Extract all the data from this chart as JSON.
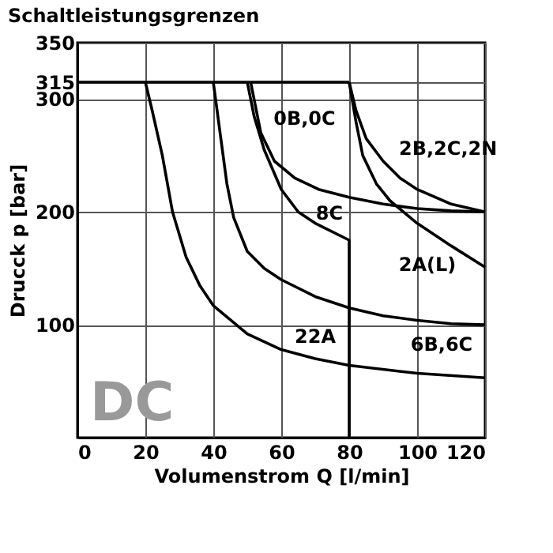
{
  "chart_data": {
    "type": "line",
    "title": "Schaltleistungsgrenzen",
    "xlabel": "Volumenstrom Q [l/min]",
    "ylabel": "Drucck  p [bar]",
    "xlim": [
      0,
      120
    ],
    "xticks": [
      0,
      20,
      40,
      60,
      80,
      100,
      120
    ],
    "ylim": [
      0,
      350
    ],
    "yticks": [
      100,
      200,
      300,
      315,
      350
    ],
    "grid": true,
    "marker": "none",
    "line_style": "solid",
    "series": [
      {
        "color": "#000000",
        "x": [
          0,
          80
        ],
        "values": [
          315,
          315
        ]
      },
      {
        "name": "22A",
        "color": "#000000",
        "x": [
          20,
          22,
          25,
          28,
          32,
          36,
          40,
          50,
          60,
          70,
          80,
          100,
          120
        ],
        "values": [
          315,
          290,
          250,
          200,
          160,
          135,
          117,
          92,
          78,
          70,
          64,
          57,
          53
        ]
      },
      {
        "name": "6B,6C",
        "color": "#000000",
        "x": [
          40,
          42,
          44,
          46,
          50,
          55,
          60,
          70,
          80,
          90,
          100,
          110,
          120
        ],
        "values": [
          315,
          270,
          225,
          195,
          165,
          150,
          140,
          125,
          115,
          108,
          104,
          101,
          100
        ]
      },
      {
        "name": "8C",
        "color": "#000000",
        "x": [
          50,
          52,
          55,
          60,
          65,
          70,
          80,
          80
        ],
        "values": [
          315,
          285,
          255,
          220,
          200,
          190,
          175,
          0
        ]
      },
      {
        "name": "0B,0C",
        "color": "#000000",
        "x": [
          51,
          54,
          58,
          64,
          71,
          80,
          90,
          100,
          110,
          120
        ],
        "values": [
          315,
          270,
          245,
          230,
          220,
          213,
          207,
          203,
          201,
          200
        ]
      },
      {
        "name": "2B,2C,2N",
        "color": "#000000",
        "x": [
          80,
          82,
          85,
          90,
          95,
          100,
          110,
          120
        ],
        "values": [
          315,
          290,
          265,
          245,
          230,
          220,
          207,
          200
        ]
      },
      {
        "name": "2A(L)",
        "color": "#000000",
        "x": [
          80,
          82,
          84,
          88,
          92,
          96,
          100,
          110,
          120
        ],
        "values": [
          315,
          280,
          250,
          225,
          210,
          200,
          190,
          170,
          151
        ]
      }
    ],
    "annotations": [
      "DC"
    ]
  }
}
